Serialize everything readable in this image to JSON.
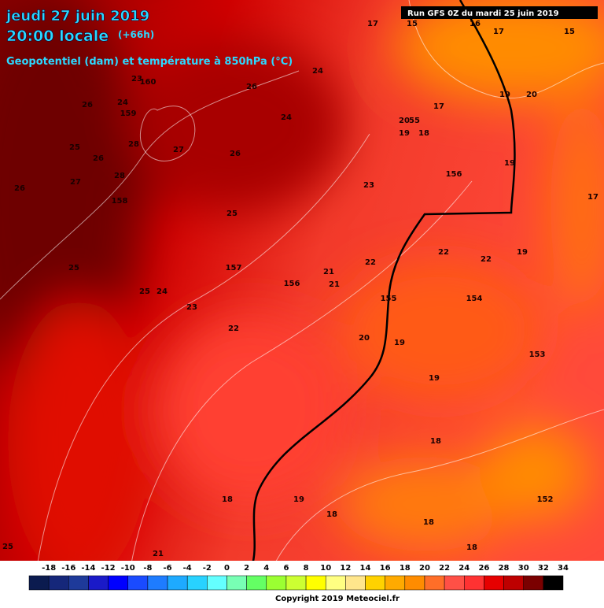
{
  "header": {
    "date": "jeudi 27 juin 2019",
    "time": "20:00 locale",
    "lead": "(+66h)",
    "field": "Geopotentiel (dam) et température à 850hPa (°C)",
    "run": "Run GFS 0Z du mardi 25 juin 2019"
  },
  "map_labels": [
    "17",
    "15",
    "16",
    "17",
    "15",
    "24",
    "26",
    "23",
    "160",
    "26",
    "24",
    "159",
    "17",
    "19",
    "20",
    "20",
    "55",
    "24",
    "19",
    "18",
    "28",
    "27",
    "25",
    "26",
    "19",
    "26",
    "27",
    "28",
    "156",
    "23",
    "26",
    "17",
    "158",
    "25",
    "22",
    "22",
    "19",
    "22",
    "157",
    "156",
    "21",
    "21",
    "25",
    "25",
    "24",
    "155",
    "154",
    "23",
    "22",
    "20",
    "19",
    "153",
    "19",
    "18",
    "152",
    "19",
    "18",
    "18",
    "18",
    "18",
    "25",
    "21"
  ],
  "legend": {
    "labels": [
      -18,
      -16,
      -14,
      -12,
      -10,
      -8,
      -6,
      -4,
      -2,
      0,
      2,
      4,
      6,
      8,
      10,
      12,
      14,
      16,
      18,
      20,
      22,
      24,
      26,
      28,
      30,
      32,
      34
    ],
    "colors": [
      "#0b1b4f",
      "#15277a",
      "#1e3a9a",
      "#1a1ac8",
      "#0000ff",
      "#1a4bff",
      "#1e7cff",
      "#1eaaff",
      "#28d2ff",
      "#64ffff",
      "#78ffb4",
      "#64ff64",
      "#9bff32",
      "#ccff32",
      "#ffff00",
      "#ffff82",
      "#ffe68c",
      "#ffd200",
      "#ffaa00",
      "#ff8c00",
      "#ff6e28",
      "#ff5046",
      "#ff3232",
      "#e60000",
      "#be0000",
      "#7a0000",
      "#000000"
    ]
  },
  "copyright": "Copyright 2019 Meteociel.fr"
}
